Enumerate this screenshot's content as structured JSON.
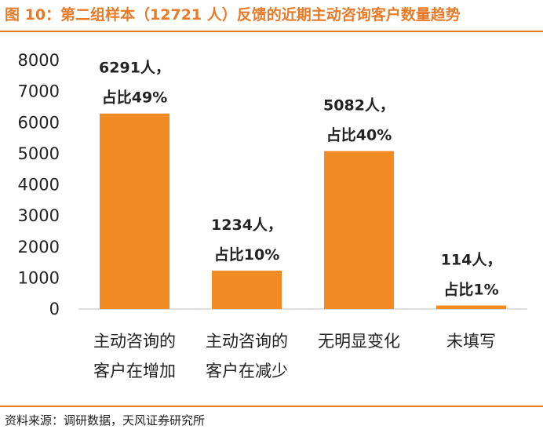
{
  "title": "图 10：第二组样本（12721 人）反馈的近期主动咨询客户数量趋势",
  "source": "资料来源：调研数据，天风证券研究所",
  "colors": {
    "accent": "#e87a28",
    "bar": "#f28b24",
    "text": "#222222"
  },
  "chart_data": {
    "type": "bar",
    "categories": [
      [
        "主动咨询的",
        "客户在增加"
      ],
      [
        "主动咨询的",
        "客户在减少"
      ],
      [
        "无明显变化"
      ],
      [
        "未填写"
      ]
    ],
    "values": [
      6291,
      1234,
      5082,
      114
    ],
    "data_labels": [
      [
        "6291人，",
        "占比49%"
      ],
      [
        "1234人，",
        "占比10%"
      ],
      [
        "5082人，",
        "占比40%"
      ],
      [
        "114人，",
        "占比1%"
      ]
    ],
    "yticks": [
      0,
      1000,
      2000,
      3000,
      4000,
      5000,
      6000,
      7000,
      8000
    ],
    "ylim": [
      0,
      8000
    ],
    "grid": false,
    "legend": "none"
  }
}
